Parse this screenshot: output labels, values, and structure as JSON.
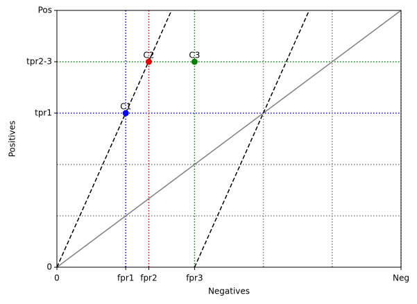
{
  "chart_data": {
    "type": "line",
    "xlabel": "Negatives",
    "ylabel": "Positives",
    "xlim": [
      0,
      1
    ],
    "ylim": [
      0,
      1
    ],
    "xticks": [
      0,
      {
        "value": 0.2,
        "label": "fpr1"
      },
      {
        "value": 0.267,
        "label": "fpr2"
      },
      {
        "value": 0.4,
        "label": "fpr3"
      },
      {
        "value": 1,
        "label": "Neg"
      }
    ],
    "yticks": [
      0,
      {
        "value": 0.6,
        "label": "tpr1"
      },
      {
        "value": 0.8,
        "label": "tpr2-3"
      },
      {
        "value": 1,
        "label": "Pos"
      }
    ],
    "series": [
      {
        "color": "#808080",
        "dash": false,
        "x": [
          0,
          1
        ],
        "values": [
          0,
          1
        ]
      },
      {
        "color": "#000000",
        "dash": true,
        "x": [
          0,
          0.333
        ],
        "values": [
          0,
          1
        ]
      },
      {
        "color": "#000000",
        "dash": true,
        "x": [
          0.4,
          0.733
        ],
        "values": [
          0,
          1
        ]
      }
    ],
    "vlines": [
      {
        "x": 0.6,
        "color": "#808080"
      },
      {
        "x": 0.8,
        "color": "#808080"
      },
      {
        "x": 1,
        "color": "#808080"
      },
      {
        "x": 0.2,
        "color": "#0000ff"
      },
      {
        "x": 0.267,
        "color": "#ff0000"
      },
      {
        "x": 0.4,
        "color": "#008000"
      }
    ],
    "hlines": [
      {
        "y": 0.2,
        "color": "#808080"
      },
      {
        "y": 0.4,
        "color": "#808080"
      },
      {
        "y": 0.6,
        "color": "#0000ff"
      },
      {
        "y": 0.8,
        "color": "#008000"
      }
    ],
    "points": [
      {
        "label": "C1",
        "x": 0.2,
        "y": 0.6,
        "color": "#0000ff"
      },
      {
        "label": "C2",
        "x": 0.267,
        "y": 0.8,
        "color": "#e00000"
      },
      {
        "label": "C3",
        "x": 0.4,
        "y": 0.8,
        "color": "#008000"
      }
    ]
  }
}
